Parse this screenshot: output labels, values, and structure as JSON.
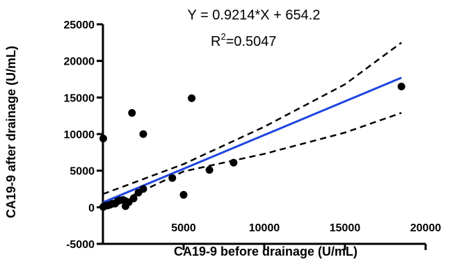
{
  "chart_data": {
    "type": "scatter",
    "xlabel": "CA19-9 before drainage (U/mL)",
    "ylabel": "CA19-9 after drainage (U/mL)",
    "xlim": [
      0,
      20000
    ],
    "ylim": [
      -5000,
      25000
    ],
    "x_ticks": [
      5000,
      10000,
      15000,
      20000
    ],
    "x_tick_labels": [
      "5000",
      "10000",
      "15000",
      "20000"
    ],
    "y_ticks": [
      -5000,
      0,
      5000,
      10000,
      15000,
      20000,
      25000
    ],
    "y_tick_labels": [
      "-5000",
      "0",
      "5000",
      "10000",
      "15000",
      "20000",
      "25000"
    ],
    "annotations": {
      "equation": "Y = 0.9214*X + 654.2",
      "r2_prefix": "R",
      "r2_sup": "2",
      "r2_value": "=0.5047"
    },
    "points": [
      {
        "x": 20,
        "y": 9400
      },
      {
        "x": 20,
        "y": 50
      },
      {
        "x": 150,
        "y": 200
      },
      {
        "x": 300,
        "y": 250
      },
      {
        "x": 450,
        "y": 350
      },
      {
        "x": 600,
        "y": 500
      },
      {
        "x": 750,
        "y": 500
      },
      {
        "x": 900,
        "y": 800
      },
      {
        "x": 1050,
        "y": 950
      },
      {
        "x": 1250,
        "y": 1000
      },
      {
        "x": 1400,
        "y": 150
      },
      {
        "x": 1600,
        "y": 700
      },
      {
        "x": 1800,
        "y": 12900
      },
      {
        "x": 1900,
        "y": 1200
      },
      {
        "x": 2200,
        "y": 2000
      },
      {
        "x": 2500,
        "y": 2500
      },
      {
        "x": 2500,
        "y": 10000
      },
      {
        "x": 4300,
        "y": 4000
      },
      {
        "x": 5000,
        "y": 1700
      },
      {
        "x": 5500,
        "y": 14900
      },
      {
        "x": 6600,
        "y": 5100
      },
      {
        "x": 8100,
        "y": 6100
      },
      {
        "x": 18500,
        "y": 16500
      }
    ],
    "regression": {
      "slope": 0.9214,
      "intercept": 654.2,
      "x_range": [
        0,
        18500
      ],
      "color": "#1f45e0"
    },
    "confidence_band": {
      "upper": [
        [
          0,
          1800
        ],
        [
          5000,
          5900
        ],
        [
          10000,
          11000
        ],
        [
          15000,
          16800
        ],
        [
          18500,
          22500
        ]
      ],
      "lower": [
        [
          0,
          -300
        ],
        [
          5000,
          4900
        ],
        [
          10000,
          7300
        ],
        [
          15000,
          10200
        ],
        [
          18500,
          12900
        ]
      ],
      "color": "#000000"
    },
    "grid": false,
    "legend": "none"
  }
}
